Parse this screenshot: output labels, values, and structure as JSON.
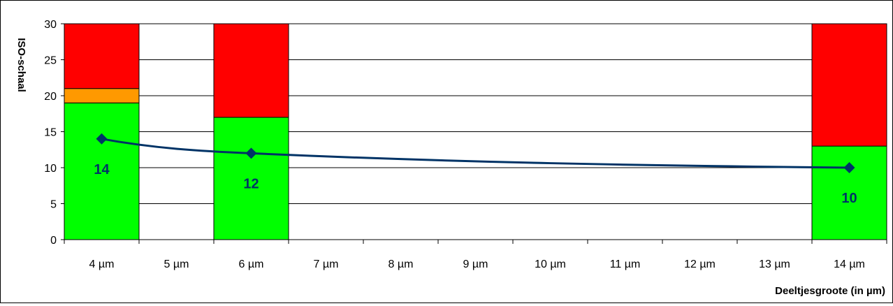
{
  "chart_data": {
    "type": "bar",
    "ylabel": "ISO-schaal",
    "xlabel": "Deeltjesgroote (in µm)",
    "ylim": [
      0,
      30
    ],
    "yticks": [
      0,
      5,
      10,
      15,
      20,
      25,
      30
    ],
    "grid": true,
    "categories": [
      "4 µm",
      "5 µm",
      "6 µm",
      "7 µm",
      "8 µm",
      "9 µm",
      "10 µm",
      "11 µm",
      "12 µm",
      "13 µm",
      "14 µm"
    ],
    "bars": [
      {
        "category": "4 µm",
        "segments": [
          {
            "from": 0,
            "to": 19,
            "color": "#00ff00"
          },
          {
            "from": 19,
            "to": 21,
            "color": "#ff9900"
          },
          {
            "from": 21,
            "to": 30,
            "color": "#ff0000"
          }
        ]
      },
      {
        "category": "6 µm",
        "segments": [
          {
            "from": 0,
            "to": 17,
            "color": "#00ff00"
          },
          {
            "from": 17,
            "to": 30,
            "color": "#ff0000"
          }
        ]
      },
      {
        "category": "14 µm",
        "segments": [
          {
            "from": 0,
            "to": 13,
            "color": "#00ff00"
          },
          {
            "from": 13,
            "to": 30,
            "color": "#ff0000"
          }
        ]
      }
    ],
    "line": {
      "color": "#003366",
      "points": [
        {
          "x": 4,
          "y": 14,
          "label": "14"
        },
        {
          "x": 6,
          "y": 12,
          "label": "12"
        },
        {
          "x": 14,
          "y": 10,
          "label": "10"
        }
      ]
    }
  }
}
